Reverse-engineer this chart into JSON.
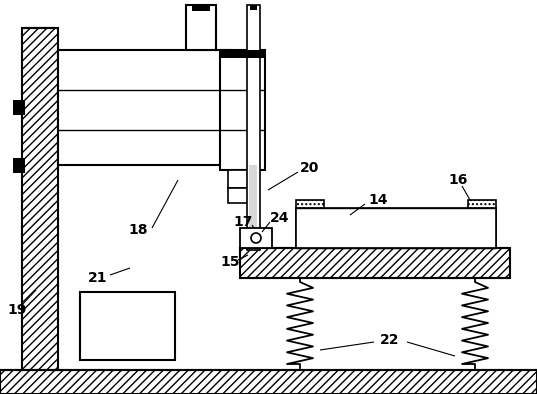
{
  "bg_color": "#ffffff",
  "line_color": "#000000",
  "label_fontsize": 10,
  "fig_width": 5.37,
  "fig_height": 3.94,
  "dpi": 100
}
